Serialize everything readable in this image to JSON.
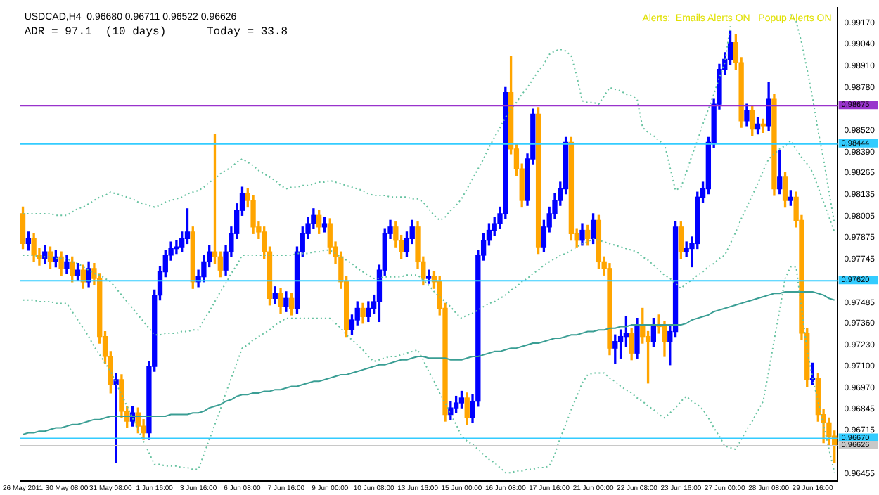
{
  "chart_data": {
    "type": "candlestick",
    "categories": [
      "26 May 2011",
      null,
      null,
      null,
      null,
      null,
      null,
      null,
      "30 May 08:00",
      null,
      null,
      null,
      null,
      null,
      null,
      null,
      "31 May 08:00",
      null,
      null,
      null,
      null,
      null,
      null,
      null,
      "1 Jun 16:00",
      null,
      null,
      null,
      null,
      null,
      null,
      null,
      "3 Jun 16:00",
      null,
      null,
      null,
      null,
      null,
      null,
      null,
      "6 Jun 08:00",
      null,
      null,
      null,
      null,
      null,
      null,
      null,
      "7 Jun 16:00",
      null,
      null,
      null,
      null,
      null,
      null,
      null,
      "9 Jun 00:00",
      null,
      null,
      null,
      null,
      null,
      null,
      null,
      "10 Jun 08:00",
      null,
      null,
      null,
      null,
      null,
      null,
      null,
      "13 Jun 16:00",
      null,
      null,
      null,
      null,
      null,
      null,
      null,
      "15 Jun 00:00",
      null,
      null,
      null,
      null,
      null,
      null,
      null,
      "16 Jun 08:00",
      null,
      null,
      null,
      null,
      null,
      null,
      null,
      "17 Jun 16:00",
      null,
      null,
      null,
      null,
      null,
      null,
      null,
      "21 Jun 00:00",
      null,
      null,
      null,
      null,
      null,
      null,
      null,
      "22 Jun 08:00",
      null,
      null,
      null,
      null,
      null,
      null,
      null,
      "23 Jun 16:00",
      null,
      null,
      null,
      null,
      null,
      null,
      null,
      "27 Jun 00:00",
      null,
      null,
      null,
      null,
      null,
      null,
      null,
      "28 Jun 08:00",
      null,
      null,
      null,
      null,
      null,
      null,
      null,
      "29 Jun 16:00",
      null,
      null,
      null,
      null
    ],
    "ohlc": [
      [
        0.9802,
        0.9806,
        0.9781,
        0.9784
      ],
      [
        0.9784,
        0.9791,
        0.978,
        0.9787
      ],
      [
        0.9787,
        0.979,
        0.9773,
        0.9777
      ],
      [
        0.9777,
        0.9781,
        0.9771,
        0.9775
      ],
      [
        0.9775,
        0.9783,
        0.9772,
        0.9779
      ],
      [
        0.9779,
        0.9782,
        0.9769,
        0.9773
      ],
      [
        0.9773,
        0.978,
        0.977,
        0.9776
      ],
      [
        0.9776,
        0.9779,
        0.9765,
        0.9769
      ],
      [
        0.9769,
        0.9777,
        0.9766,
        0.9773
      ],
      [
        0.9773,
        0.9776,
        0.9761,
        0.9765
      ],
      [
        0.9765,
        0.9772,
        0.9762,
        0.9768
      ],
      [
        0.9768,
        0.9771,
        0.9757,
        0.9761
      ],
      [
        0.9761,
        0.9773,
        0.9758,
        0.9769
      ],
      [
        0.9769,
        0.9772,
        0.9759,
        0.9763
      ],
      [
        0.9763,
        0.9766,
        0.9724,
        0.9728
      ],
      [
        0.9728,
        0.9731,
        0.9712,
        0.9716
      ],
      [
        0.9716,
        0.9719,
        0.9694,
        0.9699
      ],
      [
        0.9699,
        0.9706,
        0.9652,
        0.9702
      ],
      [
        0.9702,
        0.9705,
        0.9679,
        0.9683
      ],
      [
        0.9683,
        0.9686,
        0.9673,
        0.9677
      ],
      [
        0.9677,
        0.9686,
        0.9674,
        0.9682
      ],
      [
        0.9682,
        0.9685,
        0.967,
        0.9674
      ],
      [
        0.9674,
        0.9678,
        0.9666,
        0.967
      ],
      [
        0.967,
        0.9713,
        0.9666,
        0.971
      ],
      [
        0.971,
        0.9756,
        0.9707,
        0.9753
      ],
      [
        0.9753,
        0.977,
        0.975,
        0.9767
      ],
      [
        0.9767,
        0.978,
        0.9764,
        0.9777
      ],
      [
        0.9777,
        0.9785,
        0.9774,
        0.9781
      ],
      [
        0.9781,
        0.9786,
        0.9778,
        0.9782
      ],
      [
        0.9782,
        0.9791,
        0.9779,
        0.9787
      ],
      [
        0.9787,
        0.9805,
        0.9784,
        0.9791
      ],
      [
        0.9791,
        0.9794,
        0.9757,
        0.9761
      ],
      [
        0.9761,
        0.9768,
        0.9758,
        0.9764
      ],
      [
        0.9764,
        0.9777,
        0.9761,
        0.9773
      ],
      [
        0.9773,
        0.9783,
        0.977,
        0.9779
      ],
      [
        0.9779,
        0.985,
        0.9772,
        0.9776
      ],
      [
        0.9776,
        0.9779,
        0.9764,
        0.9768
      ],
      [
        0.9768,
        0.9783,
        0.9765,
        0.9779
      ],
      [
        0.9779,
        0.9794,
        0.9776,
        0.979
      ],
      [
        0.979,
        0.9808,
        0.9787,
        0.9804
      ],
      [
        0.9804,
        0.9818,
        0.9801,
        0.9814
      ],
      [
        0.9814,
        0.9817,
        0.9806,
        0.981
      ],
      [
        0.981,
        0.9813,
        0.979,
        0.9794
      ],
      [
        0.9794,
        0.9797,
        0.9787,
        0.9791
      ],
      [
        0.9791,
        0.9794,
        0.9775,
        0.9779
      ],
      [
        0.9779,
        0.9782,
        0.9747,
        0.9751
      ],
      [
        0.9751,
        0.9758,
        0.9748,
        0.9754
      ],
      [
        0.9754,
        0.9757,
        0.9742,
        0.9746
      ],
      [
        0.9746,
        0.9755,
        0.9743,
        0.9751
      ],
      [
        0.9751,
        0.9754,
        0.9741,
        0.9745
      ],
      [
        0.9745,
        0.9782,
        0.9742,
        0.9779
      ],
      [
        0.9779,
        0.9794,
        0.9776,
        0.979
      ],
      [
        0.979,
        0.98,
        0.9787,
        0.9796
      ],
      [
        0.9796,
        0.9805,
        0.9793,
        0.9801
      ],
      [
        0.9801,
        0.9804,
        0.979,
        0.9794
      ],
      [
        0.9794,
        0.98,
        0.9791,
        0.9796
      ],
      [
        0.9796,
        0.9799,
        0.9778,
        0.9782
      ],
      [
        0.9782,
        0.9785,
        0.9772,
        0.9776
      ],
      [
        0.9776,
        0.9779,
        0.9757,
        0.9761
      ],
      [
        0.9761,
        0.9764,
        0.9728,
        0.9732
      ],
      [
        0.9732,
        0.9741,
        0.9729,
        0.9738
      ],
      [
        0.9738,
        0.9749,
        0.9735,
        0.9745
      ],
      [
        0.9745,
        0.9748,
        0.9736,
        0.974
      ],
      [
        0.974,
        0.9749,
        0.9737,
        0.9745
      ],
      [
        0.9745,
        0.9753,
        0.9742,
        0.9749
      ],
      [
        0.9749,
        0.9771,
        0.9737,
        0.9768
      ],
      [
        0.9768,
        0.9793,
        0.9765,
        0.979
      ],
      [
        0.979,
        0.9798,
        0.9787,
        0.9794
      ],
      [
        0.9794,
        0.9797,
        0.9782,
        0.9786
      ],
      [
        0.9786,
        0.9789,
        0.9775,
        0.9779
      ],
      [
        0.9779,
        0.9791,
        0.9776,
        0.9787
      ],
      [
        0.9787,
        0.9798,
        0.9784,
        0.9794
      ],
      [
        0.9794,
        0.9797,
        0.9769,
        0.9773
      ],
      [
        0.9773,
        0.9776,
        0.9759,
        0.9763
      ],
      [
        0.9763,
        0.9768,
        0.976,
        0.9764
      ],
      [
        0.9764,
        0.9767,
        0.9757,
        0.9761
      ],
      [
        0.9761,
        0.9764,
        0.9741,
        0.9745
      ],
      [
        0.9745,
        0.9748,
        0.9677,
        0.9681
      ],
      [
        0.9681,
        0.9689,
        0.9678,
        0.9685
      ],
      [
        0.9685,
        0.9692,
        0.9682,
        0.9688
      ],
      [
        0.9688,
        0.9695,
        0.9685,
        0.9691
      ],
      [
        0.9691,
        0.9694,
        0.9675,
        0.9679
      ],
      [
        0.9679,
        0.9693,
        0.9676,
        0.9689
      ],
      [
        0.9689,
        0.978,
        0.9686,
        0.9777
      ],
      [
        0.9777,
        0.979,
        0.9774,
        0.9786
      ],
      [
        0.9786,
        0.9796,
        0.9783,
        0.9792
      ],
      [
        0.9792,
        0.98,
        0.9789,
        0.9796
      ],
      [
        0.9796,
        0.9806,
        0.9793,
        0.9802
      ],
      [
        0.9802,
        0.9878,
        0.9799,
        0.9875
      ],
      [
        0.9875,
        0.9897,
        0.9838,
        0.9841
      ],
      [
        0.9841,
        0.9844,
        0.9825,
        0.9829
      ],
      [
        0.9829,
        0.9832,
        0.9806,
        0.981
      ],
      [
        0.981,
        0.9838,
        0.9807,
        0.9835
      ],
      [
        0.9835,
        0.9865,
        0.9832,
        0.9862
      ],
      [
        0.9862,
        0.9866,
        0.9778,
        0.9782
      ],
      [
        0.9782,
        0.9798,
        0.9779,
        0.9794
      ],
      [
        0.9794,
        0.9806,
        0.9791,
        0.9802
      ],
      [
        0.9802,
        0.9814,
        0.9799,
        0.981
      ],
      [
        0.981,
        0.9821,
        0.9807,
        0.9817
      ],
      [
        0.9817,
        0.9848,
        0.9814,
        0.9845
      ],
      [
        0.9845,
        0.9848,
        0.9786,
        0.979
      ],
      [
        0.979,
        0.9793,
        0.9782,
        0.9786
      ],
      [
        0.9786,
        0.9796,
        0.9783,
        0.9792
      ],
      [
        0.9792,
        0.9795,
        0.9783,
        0.9787
      ],
      [
        0.9787,
        0.9802,
        0.9784,
        0.9798
      ],
      [
        0.9798,
        0.9801,
        0.9769,
        0.9773
      ],
      [
        0.9773,
        0.9776,
        0.9765,
        0.9769
      ],
      [
        0.9769,
        0.9772,
        0.9717,
        0.9721
      ],
      [
        0.9721,
        0.9729,
        0.9712,
        0.9725
      ],
      [
        0.9725,
        0.9732,
        0.9715,
        0.9728
      ],
      [
        0.9728,
        0.974,
        0.9722,
        0.973
      ],
      [
        0.973,
        0.9733,
        0.9714,
        0.9718
      ],
      [
        0.9718,
        0.9739,
        0.9715,
        0.9735
      ],
      [
        0.9735,
        0.9745,
        0.9724,
        0.9728
      ],
      [
        0.9728,
        0.9731,
        0.97,
        0.9725
      ],
      [
        0.9725,
        0.9739,
        0.9722,
        0.9735
      ],
      [
        0.9735,
        0.9741,
        0.973,
        0.9734
      ],
      [
        0.9734,
        0.9737,
        0.9716,
        0.9725
      ],
      [
        0.9725,
        0.9735,
        0.9711,
        0.9731
      ],
      [
        0.9731,
        0.9797,
        0.9728,
        0.9794
      ],
      [
        0.9794,
        0.9797,
        0.9775,
        0.9779
      ],
      [
        0.9779,
        0.9785,
        0.9776,
        0.9781
      ],
      [
        0.9781,
        0.9788,
        0.977,
        0.9784
      ],
      [
        0.9784,
        0.9815,
        0.9781,
        0.9812
      ],
      [
        0.9812,
        0.9821,
        0.9809,
        0.9817
      ],
      [
        0.9817,
        0.9848,
        0.9814,
        0.9845
      ],
      [
        0.9845,
        0.9871,
        0.9842,
        0.9868
      ],
      [
        0.9868,
        0.9892,
        0.9865,
        0.9889
      ],
      [
        0.9889,
        0.9899,
        0.9886,
        0.9895
      ],
      [
        0.9895,
        0.9912,
        0.9892,
        0.9905
      ],
      [
        0.9905,
        0.991,
        0.9889,
        0.9893
      ],
      [
        0.9893,
        0.9896,
        0.9854,
        0.9858
      ],
      [
        0.9858,
        0.9868,
        0.9855,
        0.9864
      ],
      [
        0.9864,
        0.9867,
        0.9849,
        0.9853
      ],
      [
        0.9853,
        0.986,
        0.985,
        0.9856
      ],
      [
        0.9856,
        0.9859,
        0.9851,
        0.9855
      ],
      [
        0.9855,
        0.9881,
        0.9852,
        0.9871
      ],
      [
        0.9871,
        0.9874,
        0.9813,
        0.9817
      ],
      [
        0.9817,
        0.984,
        0.9814,
        0.9824
      ],
      [
        0.9824,
        0.9827,
        0.9806,
        0.981
      ],
      [
        0.981,
        0.9816,
        0.9807,
        0.9812
      ],
      [
        0.9812,
        0.9815,
        0.9794,
        0.9798
      ],
      [
        0.9798,
        0.9801,
        0.9726,
        0.973
      ],
      [
        0.973,
        0.9733,
        0.9698,
        0.9702
      ],
      [
        0.9702,
        0.9712,
        0.9699,
        0.9703
      ],
      [
        0.9703,
        0.9706,
        0.9677,
        0.9681
      ],
      [
        0.9681,
        0.9684,
        0.9664,
        0.9676
      ],
      [
        0.9676,
        0.9679,
        0.9662,
        0.9668
      ],
      [
        0.9668,
        0.96711,
        0.96522,
        0.96626
      ]
    ],
    "colors": [
      "#ffa500",
      "#0000ff",
      "#ffa500",
      "#ffa500",
      "#0000ff",
      "#ffa500",
      "#0000ff",
      "#ffa500",
      "#0000ff",
      "#ffa500",
      "#0000ff",
      "#ffa500",
      "#0000ff",
      "#ffa500",
      "#ffa500",
      "#ffa500",
      "#ffa500",
      "#0000ff",
      "#ffa500",
      "#ffa500",
      "#0000ff",
      "#ffa500",
      "#ffa500",
      "#0000ff",
      "#0000ff",
      "#0000ff",
      "#0000ff",
      "#0000ff",
      "#0000ff",
      "#0000ff",
      "#0000ff",
      "#ffa500",
      "#0000ff",
      "#0000ff",
      "#0000ff",
      "#ffa500",
      "#ffa500",
      "#0000ff",
      "#0000ff",
      "#0000ff",
      "#0000ff",
      "#ffa500",
      "#ffa500",
      "#ffa500",
      "#ffa500",
      "#ffa500",
      "#0000ff",
      "#ffa500",
      "#0000ff",
      "#ffa500",
      "#0000ff",
      "#0000ff",
      "#0000ff",
      "#0000ff",
      "#ffa500",
      "#0000ff",
      "#ffa500",
      "#ffa500",
      "#ffa500",
      "#ffa500",
      "#0000ff",
      "#0000ff",
      "#ffa500",
      "#0000ff",
      "#0000ff",
      "#0000ff",
      "#0000ff",
      "#0000ff",
      "#ffa500",
      "#ffa500",
      "#0000ff",
      "#0000ff",
      "#ffa500",
      "#ffa500",
      "#0000ff",
      "#ffa500",
      "#ffa500",
      "#ffa500",
      "#0000ff",
      "#0000ff",
      "#0000ff",
      "#ffa500",
      "#0000ff",
      "#0000ff",
      "#0000ff",
      "#0000ff",
      "#0000ff",
      "#0000ff",
      "#0000ff",
      "#ffa500",
      "#ffa500",
      "#ffa500",
      "#0000ff",
      "#0000ff",
      "#ffa500",
      "#0000ff",
      "#0000ff",
      "#0000ff",
      "#0000ff",
      "#0000ff",
      "#ffa500",
      "#ffa500",
      "#0000ff",
      "#ffa500",
      "#0000ff",
      "#ffa500",
      "#ffa500",
      "#ffa500",
      "#0000ff",
      "#0000ff",
      "#0000ff",
      "#ffa500",
      "#0000ff",
      "#ffa500",
      "#ffa500",
      "#0000ff",
      "#ffa500",
      "#ffa500",
      "#0000ff",
      "#0000ff",
      "#ffa500",
      "#0000ff",
      "#0000ff",
      "#0000ff",
      "#0000ff",
      "#0000ff",
      "#0000ff",
      "#0000ff",
      "#0000ff",
      "#0000ff",
      "#ffa500",
      "#ffa500",
      "#0000ff",
      "#ffa500",
      "#0000ff",
      "#ffa500",
      "#0000ff",
      "#ffa500",
      "#0000ff",
      "#ffa500",
      "#0000ff",
      "#ffa500",
      "#ffa500",
      "#ffa500",
      "#0000ff",
      "#ffa500",
      "#ffa500",
      "#ffa500",
      "#ffa500"
    ],
    "series": [
      {
        "type": "line",
        "color": "#66c2a0",
        "line_style": "dotted",
        "values": [
          0.9802,
          0.9802,
          0.9802,
          0.9802,
          0.9802,
          0.9802,
          0.9801,
          0.9801,
          0.9801,
          0.9803,
          0.9805,
          0.9806,
          0.9808,
          0.981,
          0.9812,
          0.9813,
          0.9815,
          0.9814,
          0.9813,
          0.9812,
          0.9811,
          0.9809,
          0.9808,
          0.9807,
          0.9806,
          0.9807,
          0.9809,
          0.981,
          0.9811,
          0.9812,
          0.9814,
          0.9815,
          0.9816,
          0.9818,
          0.9821,
          0.9823,
          0.9826,
          0.9828,
          0.983,
          0.9833,
          0.9835,
          0.9833,
          0.9831,
          0.9828,
          0.9826,
          0.9824,
          0.9822,
          0.9819,
          0.9817,
          0.9818,
          0.9818,
          0.9819,
          0.9819,
          0.982,
          0.9821,
          0.9821,
          0.9822,
          0.9821,
          0.982,
          0.9819,
          0.9818,
          0.9817,
          0.9816,
          0.9814,
          0.9813,
          0.9813,
          0.9813,
          0.9812,
          0.9812,
          0.9812,
          0.9812,
          0.9811,
          0.9811,
          0.9809,
          0.9805,
          0.9801,
          0.9798,
          0.98,
          0.9804,
          0.9807,
          0.9811,
          0.9817,
          0.9823,
          0.9829,
          0.9835,
          0.9842,
          0.9848,
          0.9854,
          0.986,
          0.9865,
          0.9869,
          0.9874,
          0.9878,
          0.9883,
          0.9888,
          0.9892,
          0.9898,
          0.99,
          0.9901,
          0.99,
          0.9897,
          0.9885,
          0.987,
          0.9869,
          0.9869,
          0.9868,
          0.9873,
          0.9878,
          0.9877,
          0.9876,
          0.9874,
          0.9873,
          0.9871,
          0.9854,
          0.9851,
          0.9849,
          0.9846,
          0.9844,
          0.983,
          0.9816,
          0.9818,
          0.9827,
          0.9837,
          0.9846,
          0.9856,
          0.9865,
          0.9874,
          0.9884,
          0.9893,
          0.9915,
          null,
          null,
          null,
          null,
          null,
          null,
          null,
          null,
          null,
          null,
          0.9922,
          0.9918,
          0.9905,
          0.9889,
          0.9872,
          0.9852,
          0.9835,
          0.9815,
          0.9796
        ]
      },
      {
        "type": "line",
        "color": "#66c2a0",
        "line_style": "dotted",
        "values": [
          0.9777,
          0.9777,
          0.9777,
          0.9776,
          0.9776,
          0.9776,
          0.9775,
          0.9775,
          0.9775,
          0.9773,
          0.9772,
          0.977,
          0.9768,
          0.9766,
          0.9765,
          0.9763,
          0.9761,
          0.9757,
          0.9753,
          0.9749,
          0.9745,
          0.9741,
          0.9737,
          0.9733,
          0.9729,
          0.9729,
          0.973,
          0.973,
          0.973,
          0.9731,
          0.9731,
          0.9732,
          0.9732,
          0.9738,
          0.9743,
          0.9749,
          0.9755,
          0.976,
          0.9766,
          0.9771,
          0.9777,
          0.9777,
          0.9777,
          0.9777,
          0.9777,
          0.9777,
          0.9777,
          0.9777,
          0.9777,
          0.9777,
          0.9778,
          0.9778,
          0.9778,
          0.9779,
          0.9779,
          0.978,
          0.978,
          0.9778,
          0.9776,
          0.9774,
          0.9772,
          0.9769,
          0.9767,
          0.9765,
          0.9763,
          0.9763,
          0.9764,
          0.9764,
          0.9764,
          0.9764,
          0.9765,
          0.9765,
          0.9765,
          0.9762,
          0.9759,
          0.9755,
          0.9752,
          0.9749,
          0.9746,
          0.9742,
          0.9739,
          0.9741,
          0.9742,
          0.9744,
          0.9746,
          0.9748,
          0.9749,
          0.9751,
          0.9753,
          0.9756,
          0.9758,
          0.9761,
          0.9763,
          0.9766,
          0.9768,
          0.9771,
          0.9773,
          0.9775,
          0.9777,
          0.9778,
          0.978,
          0.9782,
          0.9784,
          0.9785,
          0.9787,
          0.9786,
          0.9785,
          0.9784,
          0.9783,
          0.9782,
          0.9781,
          0.978,
          0.9779,
          0.9776,
          0.9774,
          0.9771,
          0.9768,
          0.9765,
          0.9763,
          0.976,
          0.9757,
          0.976,
          0.9762,
          0.9765,
          0.9767,
          0.977,
          0.9772,
          0.9775,
          0.9777,
          0.9784,
          0.9791,
          0.9799,
          0.9806,
          0.9813,
          0.982,
          0.9828,
          0.9835,
          0.9838,
          0.9841,
          0.9843,
          0.9846,
          0.9841,
          0.9836,
          0.9832,
          0.9827,
          0.9818,
          0.9809,
          0.98,
          0.9791
        ]
      },
      {
        "type": "line",
        "color": "#66c2a0",
        "line_style": "dotted",
        "values": [
          0.975,
          0.975,
          0.975,
          0.9749,
          0.9749,
          0.9749,
          0.9748,
          0.9748,
          0.9748,
          0.9743,
          0.9738,
          0.9733,
          0.9728,
          0.9722,
          0.9717,
          0.9712,
          0.9707,
          0.97,
          0.9693,
          0.9686,
          0.9679,
          0.9672,
          0.9665,
          0.9658,
          0.9651,
          0.9651,
          0.965,
          0.965,
          0.965,
          0.9649,
          0.9649,
          0.9648,
          0.9648,
          0.9657,
          0.9666,
          0.9675,
          0.9684,
          0.9694,
          0.9703,
          0.9712,
          0.9721,
          0.9723,
          0.9726,
          0.9728,
          0.973,
          0.9732,
          0.9735,
          0.9737,
          0.9739,
          0.9739,
          0.9739,
          0.9739,
          0.9739,
          0.9739,
          0.9739,
          0.9739,
          0.9739,
          0.9736,
          0.9733,
          0.9729,
          0.9726,
          0.9723,
          0.972,
          0.9716,
          0.9713,
          0.9714,
          0.9715,
          0.9716,
          0.9716,
          0.9717,
          0.9718,
          0.9719,
          0.972,
          0.9714,
          0.9707,
          0.9701,
          0.9694,
          0.9688,
          0.9681,
          0.9675,
          0.9668,
          0.9665,
          0.9663,
          0.966,
          0.9657,
          0.9654,
          0.9652,
          0.9649,
          0.9646,
          0.9646,
          0.9647,
          0.9647,
          0.9648,
          0.9648,
          0.9649,
          0.9649,
          0.965,
          0.9657,
          0.9667,
          0.9675,
          0.9684,
          0.9692,
          0.97,
          0.9705,
          0.9706,
          0.9706,
          0.9706,
          0.9703,
          0.9701,
          0.9698,
          0.9696,
          0.9694,
          0.9691,
          0.9689,
          0.9686,
          0.9684,
          0.9681,
          0.9679,
          0.9682,
          0.9685,
          0.9689,
          0.9692,
          0.9689,
          0.9687,
          0.9684,
          0.9679,
          0.9673,
          0.9668,
          0.9662,
          0.9661,
          0.966,
          0.9666,
          0.9672,
          0.9677,
          0.9683,
          0.9689,
          0.9707,
          0.9726,
          0.9744,
          0.9763,
          0.977,
          0.977,
          0.9745,
          0.972,
          0.9703,
          0.9689,
          0.9675,
          0.966,
          0.9646
        ]
      },
      {
        "type": "line",
        "color": "#3a9e94",
        "line_style": "solid",
        "values": [
          0.9669,
          0.967,
          0.967,
          0.9671,
          0.9671,
          0.9672,
          0.9673,
          0.9673,
          0.9674,
          0.9675,
          0.9675,
          0.9676,
          0.9677,
          0.9678,
          0.9678,
          0.9679,
          0.968,
          0.968,
          0.968,
          0.968,
          0.968,
          0.968,
          0.968,
          0.968,
          0.968,
          0.968,
          0.968,
          0.9681,
          0.9681,
          0.9681,
          0.9681,
          0.9682,
          0.9682,
          0.9683,
          0.9685,
          0.9686,
          0.9687,
          0.9689,
          0.969,
          0.9692,
          0.9693,
          0.9693,
          0.9694,
          0.9694,
          0.9695,
          0.9695,
          0.9696,
          0.9696,
          0.9697,
          0.9698,
          0.9698,
          0.9699,
          0.97,
          0.9701,
          0.9701,
          0.9702,
          0.9703,
          0.9704,
          0.9705,
          0.9705,
          0.9706,
          0.9707,
          0.9708,
          0.9709,
          0.971,
          0.9711,
          0.9711,
          0.9712,
          0.9713,
          0.9714,
          0.9714,
          0.9715,
          0.9716,
          0.9716,
          0.9715,
          0.9715,
          0.9715,
          0.9715,
          0.9714,
          0.9714,
          0.9714,
          0.9715,
          0.9716,
          0.9716,
          0.9717,
          0.9718,
          0.9719,
          0.9719,
          0.972,
          0.9721,
          0.9721,
          0.9722,
          0.9723,
          0.9724,
          0.9724,
          0.9725,
          0.9726,
          0.9727,
          0.9727,
          0.9728,
          0.9729,
          0.9729,
          0.973,
          0.9731,
          0.9731,
          0.9732,
          0.9732,
          0.9733,
          0.9733,
          0.9734,
          0.9734,
          0.9735,
          0.9735,
          0.9735,
          0.9735,
          0.9735,
          0.9735,
          0.9735,
          0.9735,
          0.9735,
          0.9735,
          0.9736,
          0.9738,
          0.9739,
          0.974,
          0.9741,
          0.9743,
          0.9744,
          0.9745,
          0.9746,
          0.9747,
          0.9748,
          0.9749,
          0.975,
          0.9751,
          0.9752,
          0.9753,
          0.9754,
          0.9754,
          0.9755,
          0.9755,
          0.9755,
          0.9755,
          0.9755,
          0.9755,
          0.9754,
          0.9753,
          0.9751,
          0.975
        ]
      }
    ],
    "ylim": [
      0.9641,
      0.9926
    ],
    "yticks": [
      {
        "value": 0.9917,
        "label": "0.99170"
      },
      {
        "value": 0.9904,
        "label": "0.99040"
      },
      {
        "value": 0.9891,
        "label": "0.98910"
      },
      {
        "value": 0.9878,
        "label": "0.98780"
      },
      {
        "value": 0.9852,
        "label": "0.98520"
      },
      {
        "value": 0.9839,
        "label": "0.98390"
      },
      {
        "value": 0.98265,
        "label": "0.98265"
      },
      {
        "value": 0.98135,
        "label": "0.98135"
      },
      {
        "value": 0.98005,
        "label": "0.98005"
      },
      {
        "value": 0.97875,
        "label": "0.97875"
      },
      {
        "value": 0.97745,
        "label": "0.97745"
      },
      {
        "value": 0.97485,
        "label": "0.97485"
      },
      {
        "value": 0.9736,
        "label": "0.97360"
      },
      {
        "value": 0.9723,
        "label": "0.97230"
      },
      {
        "value": 0.971,
        "label": "0.97100"
      },
      {
        "value": 0.9697,
        "label": "0.96970"
      },
      {
        "value": 0.96845,
        "label": "0.96845"
      },
      {
        "value": 0.96715,
        "label": "0.96715"
      },
      {
        "value": 0.96455,
        "label": "0.96455"
      }
    ],
    "ref_lines": [
      {
        "axis": "y",
        "value": 0.98675,
        "label": "0.98675",
        "color": "#9933cc"
      },
      {
        "axis": "y",
        "value": 0.98444,
        "label": "0.98444",
        "color": "#33ccff"
      },
      {
        "axis": "y",
        "value": 0.9762,
        "label": "0.97620",
        "color": "#33ccff"
      },
      {
        "axis": "y",
        "value": 0.9667,
        "label": "0.96670",
        "color": "#33ccff"
      },
      {
        "axis": "y",
        "value": 0.96626,
        "label": "0.96626",
        "color": "#c8c8c8"
      }
    ],
    "annotations": [
      "USDCAD,H4  0.96680 0.96711 0.96522 0.96626",
      "ADR = 97.1  (10 days)      Today = 33.8",
      "Alerts:  Emails Alerts ON   Popup Alerts ON"
    ],
    "marker": "none",
    "grid": false,
    "legend": false
  }
}
